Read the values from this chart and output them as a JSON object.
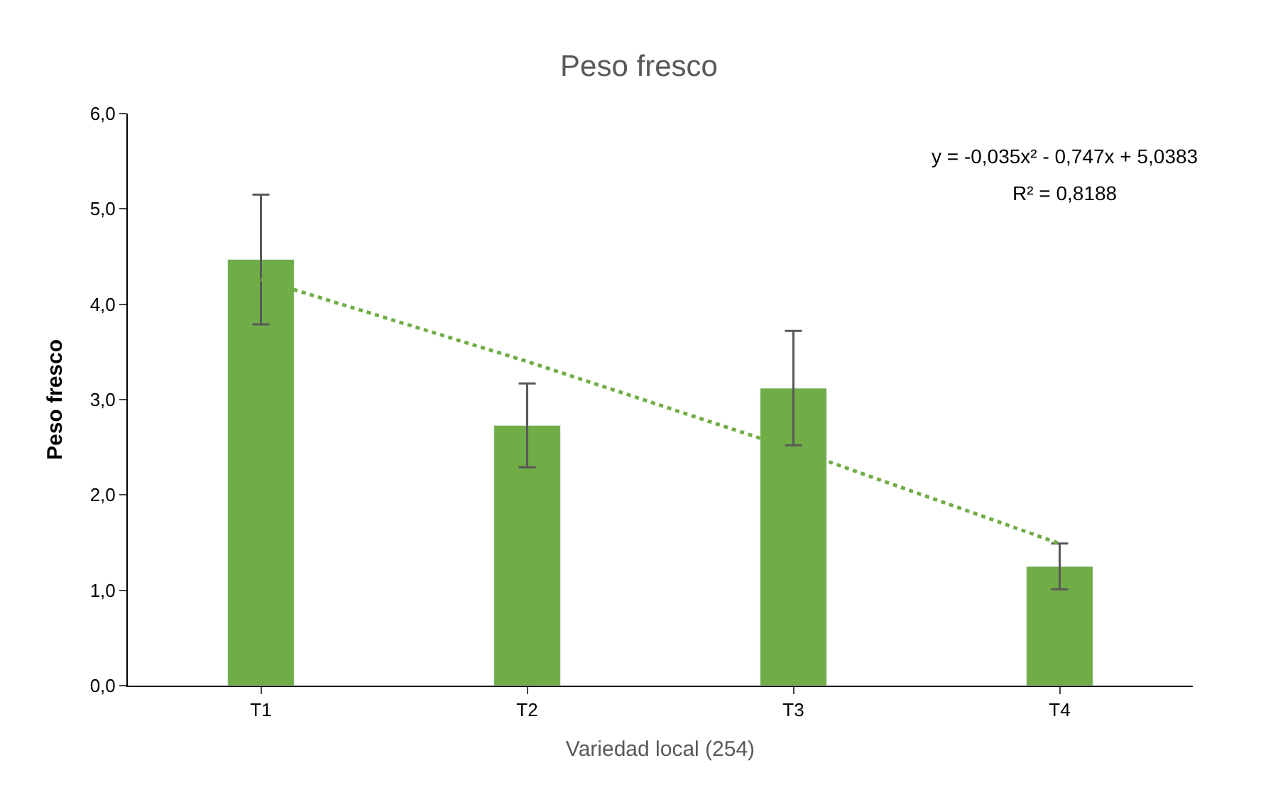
{
  "chart_data": {
    "type": "bar",
    "title": "Peso fresco",
    "xlabel": "Variedad local (254)",
    "ylabel": "Peso fresco",
    "categories": [
      "T1",
      "T2",
      "T3",
      "T4"
    ],
    "series": [
      {
        "color": "#70ad47",
        "values": [
          4.47,
          2.73,
          3.12,
          1.25
        ],
        "errors": [
          0.68,
          0.44,
          0.6,
          0.24
        ]
      },
      {
        "type": "line",
        "color": "#70ad47",
        "line_style": "dotted",
        "marker": "none",
        "values": [
          4.26,
          3.4,
          2.48,
          1.49
        ]
      }
    ],
    "ylim": [
      0,
      6
    ],
    "yticks": [
      {
        "value": 0,
        "label": "0,0"
      },
      {
        "value": 1,
        "label": "1,0"
      },
      {
        "value": 2,
        "label": "2,0"
      },
      {
        "value": 3,
        "label": "3,0"
      },
      {
        "value": 4,
        "label": "4,0"
      },
      {
        "value": 5,
        "label": "5,0"
      },
      {
        "value": 6,
        "label": "6,0"
      }
    ],
    "annotations": [
      "y = -0,035x² - 0,747x + 5,0383",
      "R² = 0,8188"
    ],
    "legend": false
  }
}
